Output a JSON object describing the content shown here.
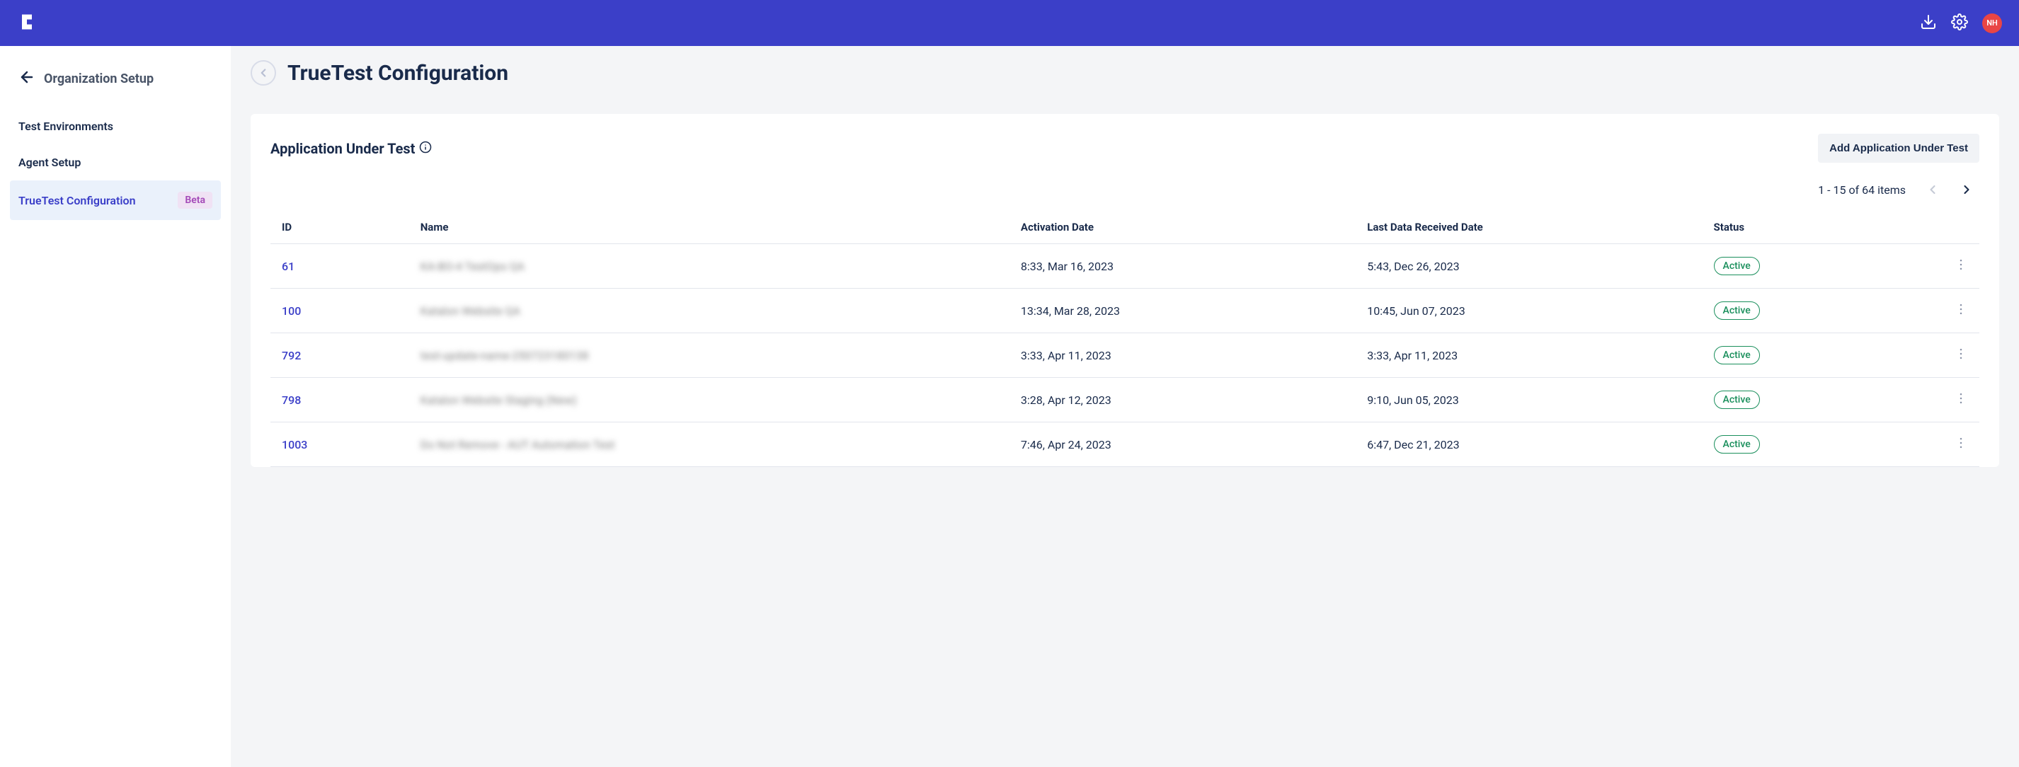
{
  "header": {
    "avatar_initials": "NH"
  },
  "sidebar": {
    "title": "Organization Setup",
    "items": [
      {
        "label": "Test Environments",
        "active": false
      },
      {
        "label": "Agent Setup",
        "active": false
      },
      {
        "label": "TrueTest Configuration",
        "active": true,
        "badge": "Beta"
      }
    ]
  },
  "page": {
    "title": "TrueTest Configuration"
  },
  "card": {
    "title": "Application Under Test",
    "add_button_label": "Add Application Under Test"
  },
  "pagination": {
    "text": "1 - 15 of 64 items"
  },
  "table": {
    "columns": {
      "id": "ID",
      "name": "Name",
      "activation": "Activation Date",
      "received": "Last Data Received Date",
      "status": "Status"
    },
    "rows": [
      {
        "id": "61",
        "name": "KA-BO-4 TestOps QA",
        "activation": "8:33, Mar 16, 2023",
        "received": "5:43, Dec 26, 2023",
        "status": "Active"
      },
      {
        "id": "100",
        "name": "Katalon Website QA",
        "activation": "13:34, Mar 28, 2023",
        "received": "10:45, Jun 07, 2023",
        "status": "Active"
      },
      {
        "id": "792",
        "name": "test-update-name-250723180138",
        "activation": "3:33, Apr 11, 2023",
        "received": "3:33, Apr 11, 2023",
        "status": "Active"
      },
      {
        "id": "798",
        "name": "Katalon Website Staging (New)",
        "activation": "3:28, Apr 12, 2023",
        "received": "9:10, Jun 05, 2023",
        "status": "Active"
      },
      {
        "id": "1003",
        "name": "Do Not Remove - AUT Automation Test",
        "activation": "7:46, Apr 24, 2023",
        "received": "6:47, Dec 21, 2023",
        "status": "Active"
      }
    ]
  },
  "colors": {
    "header_bg": "#3b3fc8",
    "page_bg": "#f4f5f7",
    "active_item_bg": "#eaf1fb",
    "active_item_text": "#3b3fc8",
    "badge_bg": "#f0e2f4",
    "badge_text": "#a349b8",
    "status_border": "#1a8f5c",
    "avatar_bg": "#e94545"
  }
}
